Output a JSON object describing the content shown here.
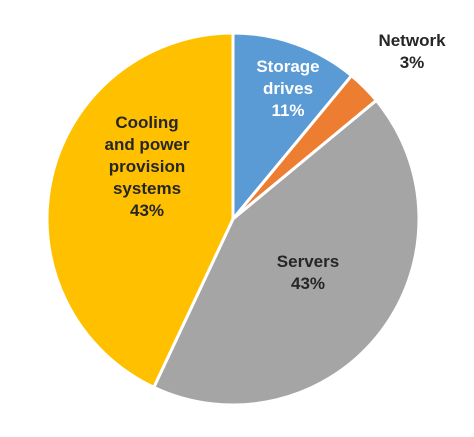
{
  "chart_data": {
    "type": "pie",
    "title": "",
    "slices": [
      {
        "label_lines": [
          "Storage",
          "drives"
        ],
        "percent_label": "11%",
        "value": 11,
        "color": "#5B9BD5",
        "text_color": "#ffffff"
      },
      {
        "label_lines": [
          "Network"
        ],
        "percent_label": "3%",
        "value": 3,
        "color": "#ED7D31",
        "text_color": "#262626"
      },
      {
        "label_lines": [
          "Servers"
        ],
        "percent_label": "43%",
        "value": 43,
        "color": "#A5A5A5",
        "text_color": "#262626"
      },
      {
        "label_lines": [
          "Cooling",
          "and power",
          "provision",
          "systems"
        ],
        "percent_label": "43%",
        "value": 43,
        "color": "#FFC000",
        "text_color": "#262626"
      }
    ],
    "start_angle_deg": 0,
    "direction": "clockwise",
    "legend": "none"
  }
}
